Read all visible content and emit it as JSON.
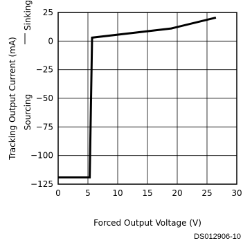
{
  "chart_data": {
    "type": "line",
    "title": "",
    "xlabel": "Forced Output Voltage (V)",
    "ylabel": "Tracking Output Current (mA)",
    "xlim": [
      0,
      30
    ],
    "ylim": [
      -125,
      25
    ],
    "xticks": [
      0,
      5,
      10,
      15,
      20,
      25,
      30
    ],
    "yticks": [
      25,
      0,
      -25,
      -50,
      -75,
      -100,
      -125
    ],
    "ytick_labels": [
      "25",
      "0",
      "−25",
      "−50",
      "−75",
      "−100",
      "−125"
    ],
    "grid": true,
    "annotations": {
      "sinking": "Sinking",
      "sourcing": "Sourcing",
      "figure_code": "DS012906-10"
    },
    "series": [
      {
        "x": [
          0,
          5.3,
          5.7,
          19,
          26.5
        ],
        "y": [
          -119,
          -119,
          3,
          11,
          20.5
        ]
      }
    ]
  }
}
